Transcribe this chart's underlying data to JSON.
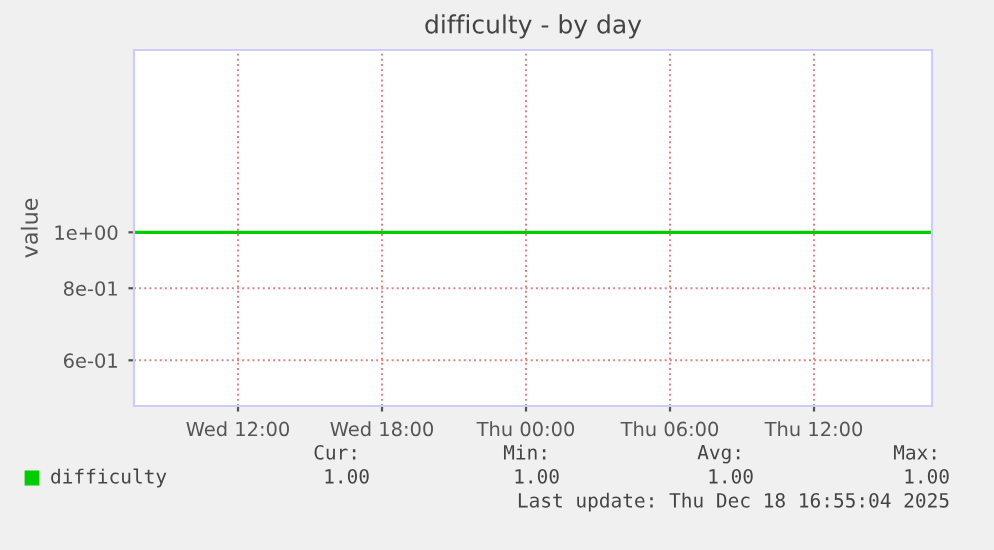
{
  "chart_data": {
    "type": "line",
    "title": "difficulty - by day",
    "ylabel": "value",
    "x": [
      "2025-12-17T07:40",
      "2025-12-18T16:55"
    ],
    "series": [
      {
        "name": "difficulty",
        "color": "#00cc00",
        "values": [
          1,
          1
        ]
      }
    ],
    "xlim": [
      "2025-12-17T07:40",
      "2025-12-18T16:55"
    ],
    "xticks": [
      {
        "value": "2025-12-17T12:00",
        "label": "Wed 12:00"
      },
      {
        "value": "2025-12-17T18:00",
        "label": "Wed 18:00"
      },
      {
        "value": "2025-12-18T00:00",
        "label": "Thu 00:00"
      },
      {
        "value": "2025-12-18T06:00",
        "label": "Thu 06:00"
      },
      {
        "value": "2025-12-18T12:00",
        "label": "Thu 12:00"
      }
    ],
    "log": "y",
    "ylim": [
      0.5,
      2.07
    ],
    "yticks": [
      {
        "value": 0.6,
        "label": "6e-01"
      },
      {
        "value": 0.8,
        "label": "8e-01"
      },
      {
        "value": 1,
        "label": "1e+00"
      }
    ],
    "grid": true,
    "legend": "bottom left",
    "annotations": [
      "Cur:",
      "Min:",
      "Avg:",
      "Max:",
      "1.00",
      "1.00",
      "1.00",
      "1.00",
      "Last update: Thu Dec 18 16:55:04 2025"
    ]
  }
}
